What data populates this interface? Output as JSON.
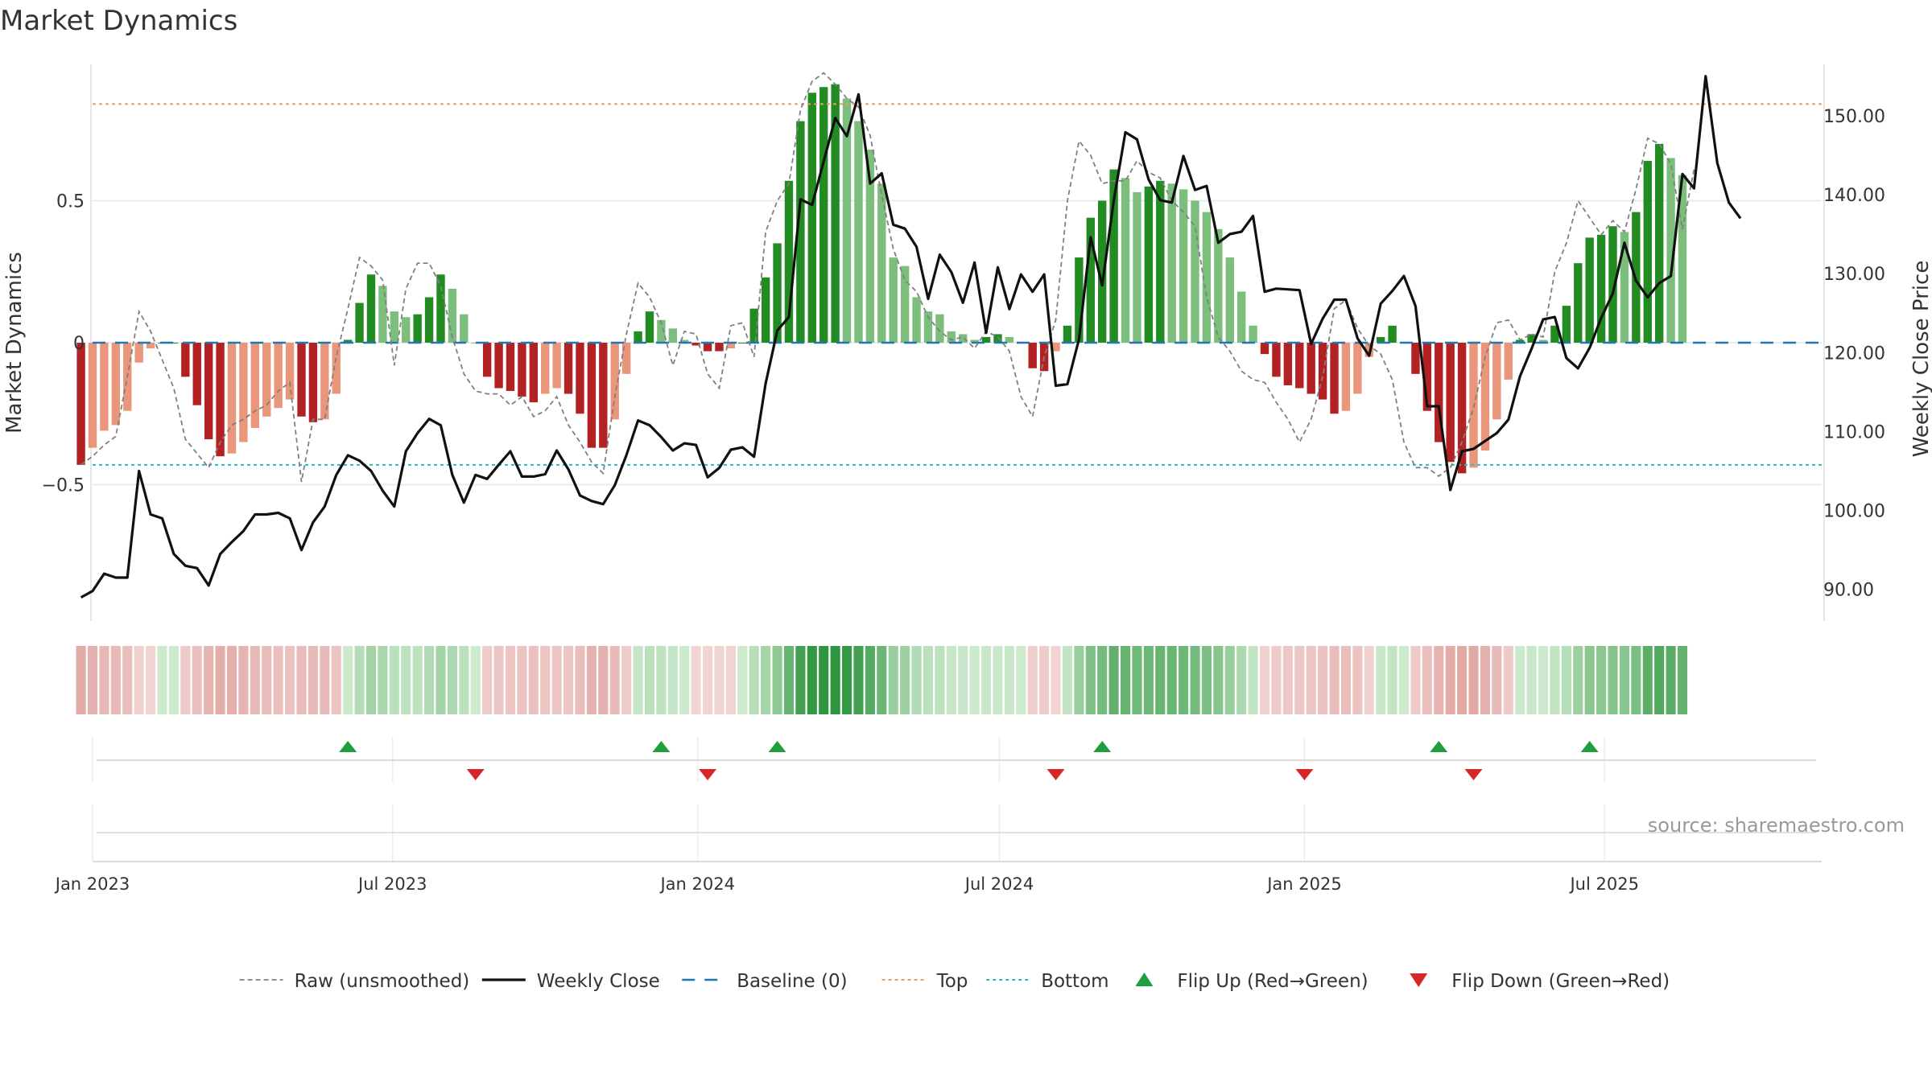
{
  "title": "Market Dynamics",
  "source": "source: sharemaestro.com",
  "colors": {
    "bull_strong": "#228b22",
    "bull_weak": "#7cbf7c",
    "bear_strong": "#b22222",
    "bear_weak": "#e9967a",
    "raw": "#808080",
    "close": "#111111",
    "baseline": "#1f77b4",
    "top": "#e8a060",
    "bottom": "#20c0c0",
    "flip_up": "#1e9e3e",
    "flip_down": "#d62728"
  },
  "chart_data": {
    "type": "bar",
    "ylabel": "Market Dynamics",
    "y2label": "Weekly Close Price",
    "ylim": [
      -0.98,
      0.98
    ],
    "y2lim": [
      86.0,
      156.5
    ],
    "y_ticks": [
      {
        "v": 0.5,
        "label": "0.5"
      },
      {
        "v": 0,
        "label": "0"
      },
      {
        "v": -0.5,
        "label": "−0.5"
      }
    ],
    "y2_ticks": [
      {
        "v": 150,
        "label": "150.00"
      },
      {
        "v": 140,
        "label": "140.00"
      },
      {
        "v": 130,
        "label": "130.00"
      },
      {
        "v": 120,
        "label": "120.00"
      },
      {
        "v": 110,
        "label": "110.00"
      },
      {
        "v": 100,
        "label": "100.00"
      },
      {
        "v": 90,
        "label": "90.00"
      }
    ],
    "x_range": [
      "2023-01-01",
      "2025-11-09"
    ],
    "x_ticks": [
      {
        "date": "2023-01-01",
        "label": "Jan 2023"
      },
      {
        "date": "2023-07-01",
        "label": "Jul 2023"
      },
      {
        "date": "2024-01-01",
        "label": "Jan 2024"
      },
      {
        "date": "2024-07-01",
        "label": "Jul 2024"
      },
      {
        "date": "2025-01-01",
        "label": "Jan 2025"
      },
      {
        "date": "2025-07-01",
        "label": "Jul 2025"
      }
    ],
    "first_week": "2022-12-25",
    "top": 0.84,
    "bottom": -0.43,
    "baseline": 0,
    "dynamics": [
      -0.43,
      -0.37,
      -0.31,
      -0.29,
      -0.24,
      -0.07,
      -0.02,
      0,
      0,
      -0.12,
      -0.22,
      -0.34,
      -0.4,
      -0.39,
      -0.35,
      -0.3,
      -0.26,
      -0.23,
      -0.2,
      -0.26,
      -0.28,
      -0.27,
      -0.18,
      0.01,
      0.14,
      0.24,
      0.2,
      0.11,
      0.09,
      0.1,
      0.16,
      0.24,
      0.19,
      0.1,
      0,
      -0.12,
      -0.16,
      -0.17,
      -0.19,
      -0.21,
      -0.18,
      -0.16,
      -0.18,
      -0.25,
      -0.37,
      -0.37,
      -0.27,
      -0.11,
      0.04,
      0.11,
      0.08,
      0.05,
      0.01,
      -0.01,
      -0.03,
      -0.03,
      -0.02,
      0,
      0.12,
      0.23,
      0.35,
      0.57,
      0.78,
      0.88,
      0.9,
      0.91,
      0.86,
      0.78,
      0.68,
      0.56,
      0.3,
      0.27,
      0.16,
      0.11,
      0.1,
      0.04,
      0.03,
      0.01,
      0.02,
      0.03,
      0.02,
      0,
      -0.09,
      -0.1,
      -0.03,
      0.06,
      0.3,
      0.44,
      0.5,
      0.61,
      0.58,
      0.53,
      0.55,
      0.57,
      0.56,
      0.54,
      0.5,
      0.46,
      0.4,
      0.3,
      0.18,
      0.06,
      -0.04,
      -0.12,
      -0.15,
      -0.16,
      -0.18,
      -0.2,
      -0.25,
      -0.24,
      -0.18,
      -0.05,
      0.02,
      0.06,
      0,
      -0.11,
      -0.24,
      -0.35,
      -0.42,
      -0.46,
      -0.44,
      -0.38,
      -0.27,
      -0.13,
      0.01,
      0.03,
      0.01,
      0.06,
      0.13,
      0.28,
      0.37,
      0.38,
      0.41,
      0.39,
      0.46,
      0.64,
      0.7,
      0.65,
      0.59
    ],
    "raw": [
      -0.43,
      -0.4,
      -0.36,
      -0.33,
      -0.12,
      0.11,
      0.04,
      -0.06,
      -0.16,
      -0.34,
      -0.39,
      -0.44,
      -0.35,
      -0.29,
      -0.27,
      -0.24,
      -0.22,
      -0.17,
      -0.14,
      -0.49,
      -0.27,
      -0.27,
      -0.05,
      0.12,
      0.3,
      0.27,
      0.22,
      -0.08,
      0.19,
      0.28,
      0.28,
      0.2,
      0.02,
      -0.11,
      -0.17,
      -0.18,
      -0.18,
      -0.22,
      -0.19,
      -0.26,
      -0.24,
      -0.19,
      -0.29,
      -0.35,
      -0.42,
      -0.46,
      -0.19,
      0.03,
      0.21,
      0.16,
      0.07,
      -0.08,
      0.04,
      0.03,
      -0.11,
      -0.16,
      0.06,
      0.07,
      -0.05,
      0.39,
      0.5,
      0.56,
      0.82,
      0.92,
      0.95,
      0.91,
      0.86,
      0.83,
      0.73,
      0.52,
      0.33,
      0.22,
      0.18,
      0.09,
      0.04,
      0.01,
      0.02,
      -0.02,
      0.04,
      0.02,
      -0.03,
      -0.19,
      -0.26,
      -0.05,
      0.08,
      0.5,
      0.71,
      0.66,
      0.56,
      0.57,
      0.57,
      0.64,
      0.6,
      0.58,
      0.5,
      0.46,
      0.41,
      0.16,
      0.02,
      -0.03,
      -0.1,
      -0.13,
      -0.14,
      -0.21,
      -0.27,
      -0.35,
      -0.27,
      -0.12,
      0.12,
      0.15,
      0.05,
      -0.01,
      -0.04,
      -0.13,
      -0.35,
      -0.44,
      -0.44,
      -0.47,
      -0.44,
      -0.35,
      -0.23,
      -0.05,
      0.07,
      0.08,
      0.01,
      0.03,
      0.02,
      0.25,
      0.35,
      0.5,
      0.44,
      0.38,
      0.43,
      0.39,
      0.54,
      0.72,
      0.7,
      0.63,
      0.4,
      0.61
    ],
    "close": [
      89,
      89.8,
      92,
      91.5,
      91.5,
      105,
      99.5,
      99,
      94.5,
      93,
      92.7,
      90.5,
      94.5,
      96,
      97.4,
      99.5,
      99.5,
      99.7,
      99,
      95,
      98.5,
      100.5,
      104.5,
      107,
      106.3,
      105,
      102.5,
      100.5,
      107.5,
      109.8,
      111.6,
      110.8,
      104.5,
      101,
      104.5,
      104,
      105.8,
      107.5,
      104.3,
      104.3,
      104.6,
      107.6,
      105.2,
      101.9,
      101.2,
      100.8,
      103.2,
      107,
      111.4,
      110.8,
      109.3,
      107.6,
      108.5,
      108.3,
      104.2,
      105.4,
      107.7,
      108,
      106.8,
      116.1,
      122.8,
      124.5,
      139.4,
      138.7,
      144.2,
      149.7,
      147.4,
      152.7,
      141.4,
      142.7,
      136.2,
      135.7,
      133.4,
      126.8,
      132.4,
      130.2,
      126.3,
      131.4,
      122.5,
      130.8,
      125.5,
      129.9,
      127.7,
      129.9,
      115.8,
      116,
      121.7,
      134.6,
      128.5,
      139.3,
      147.9,
      147,
      141.9,
      139.3,
      139,
      144.9,
      140.6,
      141.1,
      133.9,
      135,
      135.3,
      137.3,
      127.7,
      128.1,
      128,
      127.9,
      121.1,
      124.3,
      126.7,
      126.7,
      121.8,
      119.6,
      126.2,
      127.8,
      129.7,
      125.9,
      113.2,
      113.2,
      102.6,
      107.5,
      107.8,
      108.8,
      109.8,
      111.5,
      117,
      120.5,
      124.2,
      124.5,
      119.3,
      118,
      120.6,
      124.4,
      127.5,
      133.9,
      129.1,
      127,
      128.8,
      129.7,
      142.6,
      140.8,
      155,
      144,
      139,
      137
    ],
    "flip_up": [
      "2023-06-04",
      "2023-12-10",
      "2024-02-18",
      "2024-09-01",
      "2025-03-23",
      "2025-06-22"
    ],
    "flip_down": [
      "2023-08-20",
      "2024-01-07",
      "2024-08-04",
      "2025-01-01",
      "2025-04-13"
    ],
    "legend": [
      {
        "key": "raw",
        "label": "Raw (unsmoothed)"
      },
      {
        "key": "close",
        "label": "Weekly Close"
      },
      {
        "key": "baseline",
        "label": "Baseline (0)"
      },
      {
        "key": "top",
        "label": "Top"
      },
      {
        "key": "bottom",
        "label": "Bottom"
      },
      {
        "key": "flip_up",
        "label": "Flip Up (Red→Green)"
      },
      {
        "key": "flip_down",
        "label": "Flip Down (Green→Red)"
      }
    ]
  }
}
